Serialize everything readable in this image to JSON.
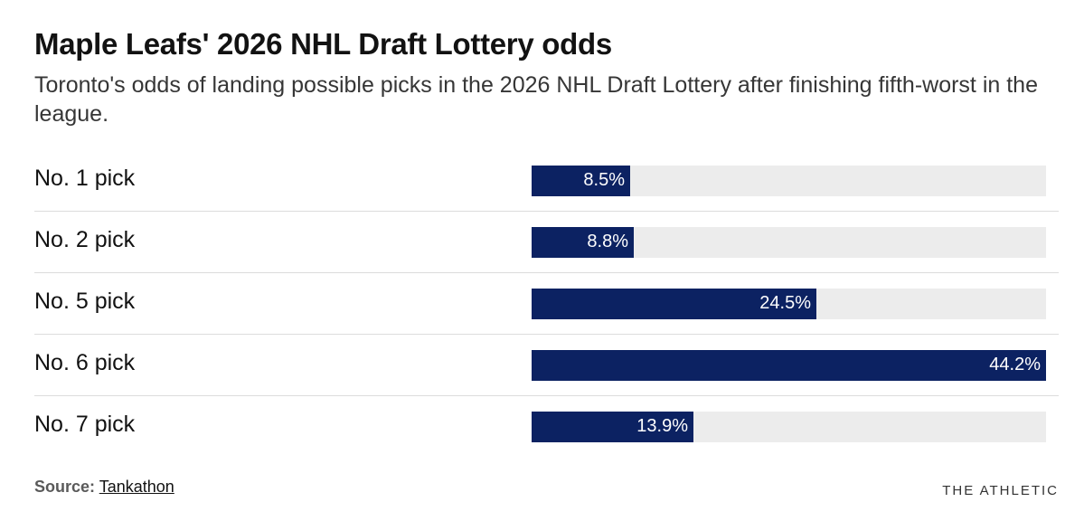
{
  "header": {
    "title": "Maple Leafs' 2026 NHL Draft Lottery odds",
    "subtitle": "Toronto's odds of landing possible picks in the 2026 NHL Draft Lottery after finishing fifth-worst in the league."
  },
  "footer": {
    "source_label": "Source:",
    "source_name": "Tankathon",
    "brand": "THE ATHLETIC"
  },
  "colors": {
    "bar": "#0c2262",
    "track": "#ececec"
  },
  "chart_data": {
    "type": "bar",
    "orientation": "horizontal",
    "title": "Maple Leafs' 2026 NHL Draft Lottery odds",
    "categories": [
      "No. 1 pick",
      "No. 2 pick",
      "No. 5 pick",
      "No. 6 pick",
      "No. 7 pick"
    ],
    "values": [
      8.5,
      8.8,
      24.5,
      44.2,
      13.9
    ],
    "value_labels": [
      "8.5%",
      "8.8%",
      "24.5%",
      "44.2%",
      "13.9%"
    ],
    "unit": "%",
    "xlim": [
      0,
      44.2
    ],
    "xlabel": "",
    "ylabel": "",
    "grid": false
  }
}
